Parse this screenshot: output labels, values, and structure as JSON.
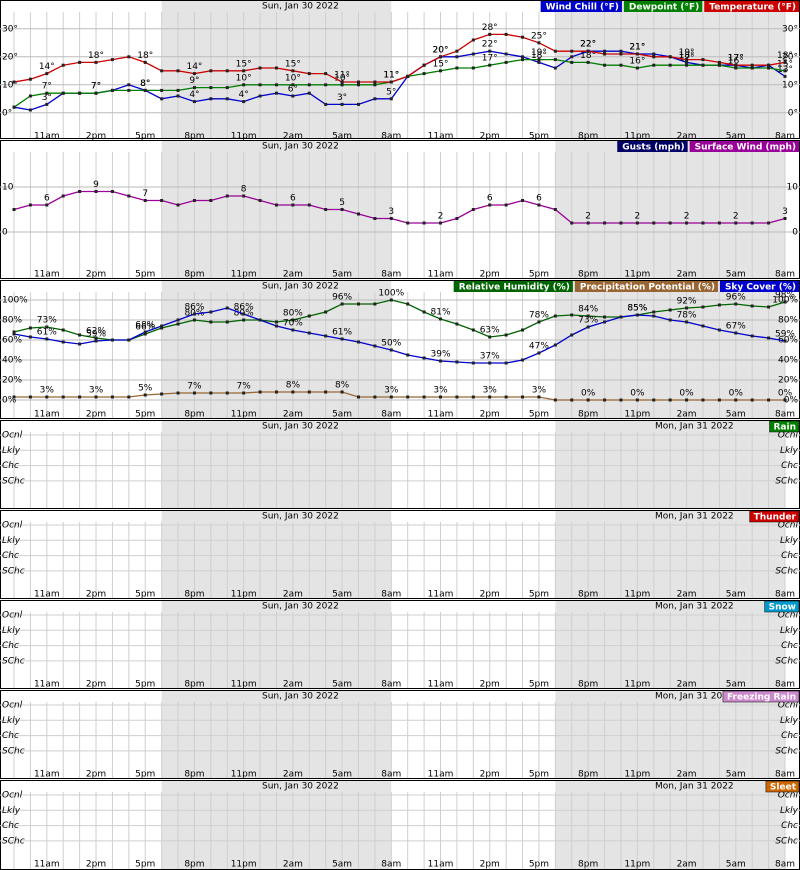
{
  "hours": [
    null,
    null,
    "11am",
    null,
    null,
    "2pm",
    null,
    null,
    "5pm",
    null,
    null,
    "8pm",
    null,
    null,
    "11pm",
    null,
    null,
    "2am",
    null,
    null,
    "5am",
    null,
    null,
    "8am",
    null,
    null,
    "11am",
    null,
    null,
    "2pm",
    null,
    null,
    "5pm",
    null,
    null,
    "8pm",
    null,
    null,
    "11pm",
    null,
    null,
    "2am",
    null,
    null,
    "5am",
    null,
    null,
    "8am"
  ],
  "days": [
    "Sun, Jan 30 2022",
    "Mon, Jan 31 2022"
  ],
  "chart_data": [
    {
      "type": "line",
      "ylim": [
        -4,
        36
      ],
      "yticks": [
        {
          "value": 0,
          "label": "0°"
        },
        {
          "value": 10,
          "label": "10°"
        },
        {
          "value": 20,
          "label": "20°"
        },
        {
          "value": 30,
          "label": "30°"
        }
      ],
      "series": [
        {
          "name": "Wind Chill (°F)",
          "color": "#0000cc",
          "values": [
            2,
            1,
            3,
            7,
            7,
            7,
            8,
            10,
            8,
            5,
            6,
            4,
            5,
            5,
            4,
            6,
            7,
            6,
            7,
            3,
            3,
            3,
            5,
            5,
            13,
            17,
            20,
            20,
            21,
            22,
            21,
            20,
            18,
            16,
            20,
            22,
            22,
            22,
            21,
            21,
            20,
            18,
            17,
            17,
            17,
            16,
            17,
            13
          ],
          "value_labels": [
            null,
            null,
            "3°",
            null,
            null,
            "7°",
            null,
            null,
            "8°",
            null,
            null,
            "4°",
            null,
            null,
            "4°",
            null,
            null,
            "6°",
            null,
            null,
            "3°",
            null,
            null,
            "5°",
            null,
            null,
            "20°",
            null,
            null,
            "22°",
            null,
            null,
            "18°",
            null,
            null,
            "22°",
            null,
            null,
            "21°",
            null,
            null,
            "18°",
            null,
            null,
            "17°",
            null,
            null,
            "13°"
          ]
        },
        {
          "name": "Dewpoint (°F)",
          "color": "#008000",
          "values": [
            2,
            6,
            7,
            7,
            7,
            7,
            8,
            8,
            8,
            8,
            8,
            9,
            9,
            9,
            10,
            10,
            10,
            10,
            10,
            10,
            10,
            10,
            10,
            11,
            13,
            14,
            15,
            16,
            16,
            17,
            18,
            19,
            19,
            19,
            18,
            18,
            17,
            17,
            16,
            17,
            17,
            17,
            17,
            17,
            16,
            16,
            16,
            15
          ],
          "value_labels": [
            null,
            null,
            "7°",
            null,
            null,
            "7°",
            null,
            null,
            "8°",
            null,
            null,
            "9°",
            null,
            null,
            "10°",
            null,
            null,
            "10°",
            null,
            null,
            "10°",
            null,
            null,
            "11°",
            null,
            null,
            "15°",
            null,
            null,
            "17°",
            null,
            null,
            "19°",
            null,
            null,
            "18°",
            null,
            null,
            "16°",
            null,
            null,
            "17°",
            null,
            null,
            "16°",
            null,
            null,
            "15°"
          ]
        },
        {
          "name": "Temperature (°F)",
          "color": "#cc0000",
          "values": [
            11,
            12,
            14,
            17,
            18,
            18,
            19,
            20,
            18,
            15,
            15,
            14,
            15,
            15,
            15,
            16,
            16,
            15,
            14,
            14,
            11,
            11,
            11,
            11,
            13,
            17,
            20,
            22,
            26,
            28,
            28,
            27,
            25,
            22,
            22,
            22,
            21,
            21,
            21,
            20,
            20,
            19,
            19,
            18,
            17,
            17,
            17,
            18
          ],
          "value_labels": [
            null,
            null,
            "14°",
            null,
            null,
            "18°",
            null,
            null,
            "18°",
            null,
            null,
            "14°",
            null,
            null,
            "15°",
            null,
            null,
            "15°",
            null,
            null,
            "11°",
            null,
            null,
            "11°",
            null,
            null,
            "20°",
            null,
            null,
            "28°",
            null,
            null,
            "25°",
            null,
            null,
            "22°",
            null,
            null,
            "21°",
            null,
            null,
            "19°",
            null,
            null,
            "17°",
            null,
            null,
            "18°"
          ]
        }
      ]
    },
    {
      "type": "line",
      "ylim": [
        -6,
        18
      ],
      "yticks": [
        0,
        10
      ],
      "series": [
        {
          "name": "Gusts (mph)",
          "color": "#000066",
          "values": [
            null,
            null,
            null,
            null,
            null,
            null,
            null,
            null,
            null,
            null,
            null,
            null,
            null,
            null,
            null,
            null,
            null,
            null,
            null,
            null,
            null,
            null,
            null,
            null,
            null,
            null,
            null,
            null,
            null,
            null,
            null,
            null,
            null,
            null,
            null,
            null,
            null,
            null,
            null,
            null,
            null,
            null,
            null,
            null,
            null,
            null,
            null,
            null
          ]
        },
        {
          "name": "Surface Wind (mph)",
          "color": "#990099",
          "values": [
            5,
            6,
            6,
            8,
            9,
            9,
            9,
            8,
            7,
            7,
            6,
            7,
            7,
            8,
            8,
            7,
            6,
            6,
            6,
            5,
            5,
            4,
            3,
            3,
            2,
            2,
            2,
            3,
            5,
            6,
            6,
            7,
            6,
            5,
            2,
            2,
            2,
            2,
            2,
            2,
            2,
            2,
            2,
            2,
            2,
            2,
            2,
            3
          ],
          "value_labels": [
            null,
            null,
            "6",
            null,
            null,
            "9",
            null,
            null,
            "7",
            null,
            null,
            null,
            null,
            null,
            "8",
            null,
            null,
            "6",
            null,
            null,
            "5",
            null,
            null,
            "3",
            null,
            null,
            "2",
            null,
            null,
            "6",
            null,
            null,
            "6",
            null,
            null,
            "2",
            null,
            null,
            "2",
            null,
            null,
            "2",
            null,
            null,
            "2",
            null,
            null,
            "3"
          ]
        }
      ]
    },
    {
      "type": "line",
      "ylim": [
        -4,
        108
      ],
      "yticks": [
        {
          "value": 0,
          "label": "0%"
        },
        {
          "value": 20,
          "label": "20%"
        },
        {
          "value": 40,
          "label": "40%"
        },
        {
          "value": 60,
          "label": "60%"
        },
        {
          "value": 80,
          "label": "80%"
        },
        {
          "value": 100,
          "label": "100%"
        }
      ],
      "series": [
        {
          "name": "Relative Humidity (%)",
          "color": "#006400",
          "values": [
            68,
            72,
            73,
            70,
            65,
            62,
            60,
            60,
            66,
            72,
            76,
            80,
            78,
            78,
            80,
            80,
            78,
            80,
            84,
            88,
            96,
            96,
            96,
            100,
            96,
            88,
            81,
            76,
            70,
            63,
            65,
            70,
            78,
            84,
            85,
            84,
            83,
            83,
            85,
            88,
            90,
            92,
            93,
            95,
            96,
            94,
            93,
            98
          ],
          "value_labels": [
            null,
            null,
            "73%",
            null,
            null,
            "62%",
            null,
            null,
            "66%",
            null,
            null,
            "80%",
            null,
            null,
            "80%",
            null,
            null,
            "80%",
            null,
            null,
            "96%",
            null,
            null,
            "100%",
            null,
            null,
            "81%",
            null,
            null,
            "63%",
            null,
            null,
            "78%",
            null,
            null,
            "84%",
            null,
            null,
            "85%",
            null,
            null,
            "92%",
            null,
            null,
            "96%",
            null,
            null,
            "98%"
          ]
        },
        {
          "name": "Precipitation Potential (%)",
          "color": "#996633",
          "values": [
            3,
            3,
            3,
            3,
            3,
            3,
            3,
            3,
            5,
            6,
            7,
            7,
            7,
            7,
            7,
            8,
            8,
            8,
            8,
            8,
            8,
            3,
            3,
            3,
            3,
            3,
            3,
            3,
            3,
            3,
            3,
            3,
            3,
            0,
            0,
            0,
            0,
            0,
            0,
            0,
            0,
            0,
            0,
            0,
            0,
            0,
            0,
            0
          ],
          "value_labels": [
            null,
            null,
            "3%",
            null,
            null,
            "3%",
            null,
            null,
            "5%",
            null,
            null,
            "7%",
            null,
            null,
            "7%",
            null,
            null,
            "8%",
            null,
            null,
            "8%",
            null,
            null,
            "3%",
            null,
            null,
            "3%",
            null,
            null,
            "3%",
            null,
            null,
            "3%",
            null,
            null,
            "0%",
            null,
            null,
            "0%",
            null,
            null,
            "0%",
            null,
            null,
            "0%",
            null,
            null,
            "0%"
          ]
        },
        {
          "name": "Sky Cover (%)",
          "color": "#0000cc",
          "values": [
            66,
            63,
            61,
            58,
            56,
            59,
            60,
            60,
            68,
            74,
            80,
            86,
            88,
            92,
            86,
            80,
            74,
            70,
            67,
            64,
            61,
            58,
            54,
            50,
            45,
            42,
            39,
            38,
            37,
            37,
            37,
            40,
            47,
            55,
            65,
            73,
            78,
            83,
            85,
            84,
            80,
            78,
            74,
            70,
            67,
            64,
            62,
            59
          ],
          "value_labels": [
            null,
            null,
            "61%",
            null,
            null,
            "59%",
            null,
            null,
            "68%",
            null,
            null,
            "86%",
            null,
            null,
            "86%",
            null,
            null,
            "70%",
            null,
            null,
            "61%",
            null,
            null,
            "50%",
            null,
            null,
            "39%",
            null,
            null,
            "37%",
            null,
            null,
            "47%",
            null,
            null,
            "73%",
            null,
            null,
            "85%",
            null,
            null,
            "78%",
            null,
            null,
            "67%",
            null,
            null,
            "59%"
          ]
        }
      ]
    },
    {
      "type": "probability",
      "title": "Rain",
      "color": "#008000",
      "ylabels": [
        "Ocnl",
        "Lkly",
        "Chc",
        "SChc"
      ]
    },
    {
      "type": "probability",
      "title": "Thunder",
      "color": "#cc0000",
      "ylabels": [
        "Ocnl",
        "Lkly",
        "Chc",
        "SChc"
      ]
    },
    {
      "type": "probability",
      "title": "Snow",
      "color": "#0099cc",
      "ylabels": [
        "Ocnl",
        "Lkly",
        "Chc",
        "SChc"
      ]
    },
    {
      "type": "probability",
      "title": "Freezing Rain",
      "color": "#cc88cc",
      "ylabels": [
        "Ocnl",
        "Lkly",
        "Chc",
        "SChc"
      ]
    },
    {
      "type": "probability",
      "title": "Sleet",
      "color": "#cc6600",
      "ylabels": [
        "Ocnl",
        "Lkly",
        "Chc",
        "SChc"
      ]
    }
  ]
}
